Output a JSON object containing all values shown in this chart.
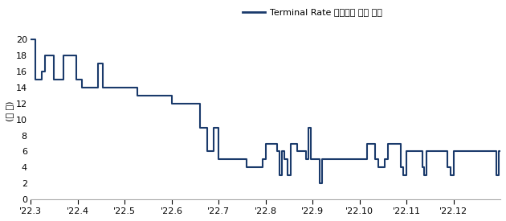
{
  "title_ylabel": "(개 월)",
  "legend_label": "Terminal Rate 확정까지 남은 기간",
  "line_color": "#1a3a6b",
  "background_color": "#ffffff",
  "ylim": [
    0,
    22
  ],
  "yticks": [
    0,
    2,
    4,
    6,
    8,
    10,
    12,
    14,
    16,
    18,
    20
  ],
  "xtick_labels": [
    "'22.3",
    "'22.4",
    "'22.5",
    "'22.6",
    "'22.7",
    "'22.8",
    "'22.9",
    "'22.10",
    "'22.11",
    "'22.12"
  ],
  "xtick_positions": [
    0.0,
    0.3,
    0.6,
    0.9,
    1.2,
    1.5,
    1.8,
    2.1,
    2.4,
    2.7
  ],
  "xlim": [
    0.0,
    3.0
  ],
  "x_values": [
    0.0,
    0.015,
    0.03,
    0.05,
    0.07,
    0.09,
    0.11,
    0.13,
    0.15,
    0.17,
    0.19,
    0.21,
    0.23,
    0.25,
    0.27,
    0.29,
    0.31,
    0.33,
    0.35,
    0.37,
    0.39,
    0.41,
    0.43,
    0.445,
    0.46,
    0.48,
    0.5,
    0.52,
    0.54,
    0.56,
    0.58,
    0.6,
    0.62,
    0.64,
    0.66,
    0.68,
    0.7,
    0.72,
    0.74,
    0.76,
    0.78,
    0.8,
    0.82,
    0.84,
    0.86,
    0.88,
    0.9,
    0.92,
    0.94,
    0.96,
    0.98,
    1.0,
    1.02,
    1.04,
    1.06,
    1.08,
    1.1,
    1.115,
    1.13,
    1.15,
    1.17,
    1.185,
    1.2,
    1.22,
    1.24,
    1.26,
    1.28,
    1.3,
    1.32,
    1.34,
    1.36,
    1.38,
    1.4,
    1.42,
    1.44,
    1.46,
    1.48,
    1.5,
    1.52,
    1.54,
    1.56,
    1.575,
    1.59,
    1.605,
    1.62,
    1.64,
    1.66,
    1.68,
    1.7,
    1.72,
    1.74,
    1.76,
    1.775,
    1.79,
    1.81,
    1.83,
    1.845,
    1.86,
    1.88,
    1.9,
    1.915,
    1.93,
    1.95,
    1.97,
    1.99,
    2.01,
    2.03,
    2.05,
    2.07,
    2.09,
    2.11,
    2.13,
    2.15,
    2.165,
    2.18,
    2.2,
    2.22,
    2.24,
    2.26,
    2.28,
    2.295,
    2.31,
    2.33,
    2.35,
    2.365,
    2.38,
    2.4,
    2.42,
    2.44,
    2.46,
    2.48,
    2.5,
    2.515,
    2.53,
    2.55,
    2.57,
    2.59,
    2.61,
    2.625,
    2.64,
    2.66,
    2.68,
    2.7,
    2.72,
    2.74,
    2.76,
    2.78,
    2.8,
    2.82,
    2.84,
    2.86,
    2.88,
    2.9,
    2.92,
    2.94,
    2.96,
    2.975,
    2.99,
    3.0
  ],
  "y_values": [
    20,
    20,
    15,
    15,
    16,
    18,
    18,
    18,
    15,
    15,
    15,
    18,
    18,
    18,
    18,
    15,
    15,
    14,
    14,
    14,
    14,
    14,
    17,
    17,
    14,
    14,
    14,
    14,
    14,
    14,
    14,
    14,
    14,
    14,
    14,
    13,
    13,
    13,
    13,
    13,
    13,
    13,
    13,
    13,
    13,
    13,
    12,
    12,
    12,
    12,
    12,
    12,
    12,
    12,
    12,
    9,
    9,
    9,
    6,
    6,
    9,
    9,
    5,
    5,
    5,
    5,
    5,
    5,
    5,
    5,
    5,
    4,
    4,
    4,
    4,
    4,
    5,
    7,
    7,
    7,
    7,
    6,
    3,
    6,
    5,
    3,
    7,
    7,
    6,
    6,
    6,
    5,
    9,
    5,
    5,
    5,
    2,
    5,
    5,
    5,
    5,
    5,
    5,
    5,
    5,
    5,
    5,
    5,
    5,
    5,
    5,
    5,
    7,
    7,
    7,
    5,
    4,
    4,
    5,
    7,
    7,
    7,
    7,
    7,
    4,
    3,
    6,
    6,
    6,
    6,
    6,
    4,
    3,
    6,
    6,
    6,
    6,
    6,
    6,
    6,
    4,
    3,
    6,
    6,
    6,
    6,
    6,
    6,
    6,
    6,
    6,
    6,
    6,
    6,
    6,
    6,
    3,
    6,
    6
  ]
}
